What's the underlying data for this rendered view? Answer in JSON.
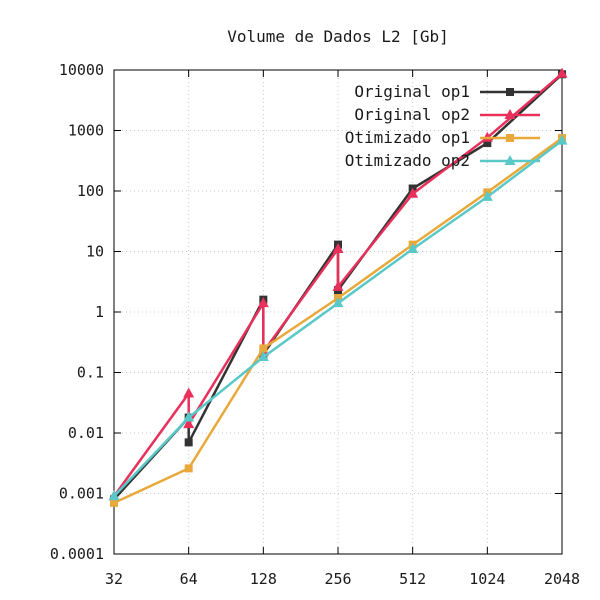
{
  "chart_data": {
    "type": "line",
    "title": "Volume de Dados L2 [Gb]",
    "xlabel": "",
    "ylabel": "",
    "x_scale": "log2",
    "y_scale": "log10",
    "xlim": [
      32,
      2048
    ],
    "ylim": [
      0.0001,
      10000
    ],
    "x_ticks": [
      "32",
      "64",
      "128",
      "256",
      "512",
      "1024",
      "2048"
    ],
    "y_ticks": [
      "0.0001",
      "0.001",
      "0.01",
      "0.1",
      "1",
      "10",
      "100",
      "1000",
      "10000"
    ],
    "grid": true,
    "legend_position": "top-right",
    "series": [
      {
        "name": "Original op1",
        "color": "#333333",
        "marker": "square",
        "points": [
          [
            32,
            0.0008
          ],
          [
            64,
            0.018
          ],
          [
            64,
            0.007
          ],
          [
            128,
            1.6
          ],
          [
            128,
            0.2
          ],
          [
            256,
            13
          ],
          [
            256,
            2.3
          ],
          [
            512,
            110
          ],
          [
            1024,
            620
          ],
          [
            2048,
            8500
          ]
        ]
      },
      {
        "name": "Original op2",
        "color": "#e8305a",
        "marker": "triangle",
        "points": [
          [
            32,
            0.0009
          ],
          [
            64,
            0.045
          ],
          [
            64,
            0.014
          ],
          [
            128,
            1.4
          ],
          [
            128,
            0.22
          ],
          [
            256,
            11
          ],
          [
            256,
            2.6
          ],
          [
            512,
            90
          ],
          [
            1024,
            760
          ],
          [
            2048,
            8700
          ]
        ]
      },
      {
        "name": "Otimizado op1",
        "color": "#e8a93a",
        "marker": "square",
        "points": [
          [
            32,
            0.0007
          ],
          [
            64,
            0.0026
          ],
          [
            128,
            0.25
          ],
          [
            256,
            1.7
          ],
          [
            512,
            13
          ],
          [
            1024,
            95
          ],
          [
            2048,
            750
          ]
        ]
      },
      {
        "name": "Otimizado op2",
        "color": "#5bc8c8",
        "marker": "triangle",
        "points": [
          [
            32,
            0.0009
          ],
          [
            64,
            0.018
          ],
          [
            128,
            0.18
          ],
          [
            256,
            1.4
          ],
          [
            512,
            11
          ],
          [
            1024,
            80
          ],
          [
            2048,
            680
          ]
        ]
      }
    ]
  }
}
